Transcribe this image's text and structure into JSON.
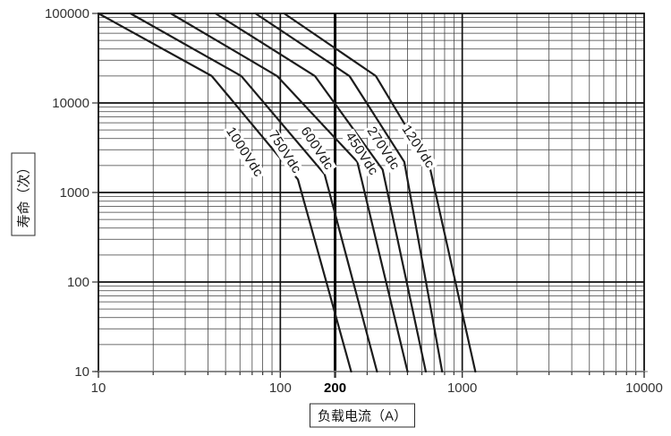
{
  "figure": {
    "background": "#ffffff",
    "curve_color": "#1c1c1c",
    "grid_minor_color": "#3c3c3c",
    "grid_major_color": "#111111",
    "axis_line_color": "#a3a3a3",
    "reference_line_color": "#000000",
    "tick_label_color": "#333333"
  },
  "chart_data": {
    "type": "line",
    "title": "",
    "xlabel": "负载电流（A）",
    "ylabel": "寿命（次）",
    "x_scale": "log",
    "y_scale": "log",
    "xlim": [
      10,
      10000
    ],
    "ylim": [
      10,
      100000
    ],
    "grid": "log major + minor gridlines on both axes",
    "legend_position": "inline rotated labels on curves",
    "reference_line_x": 200,
    "x_ticks": [
      {
        "value": 10,
        "label": "10",
        "bold": false
      },
      {
        "value": 100,
        "label": "100",
        "bold": false
      },
      {
        "value": 200,
        "label": "200",
        "bold": true
      },
      {
        "value": 1000,
        "label": "1000",
        "bold": false
      },
      {
        "value": 10000,
        "label": "10000",
        "bold": false
      }
    ],
    "y_ticks": [
      {
        "value": 10,
        "label": "10"
      },
      {
        "value": 100,
        "label": "100"
      },
      {
        "value": 1000,
        "label": "1000"
      },
      {
        "value": 10000,
        "label": "10000"
      },
      {
        "value": 100000,
        "label": "100000"
      }
    ],
    "series": [
      {
        "name": "1000Vdc",
        "points": [
          [
            10,
            100000
          ],
          [
            42,
            20000
          ],
          [
            125,
            1400
          ],
          [
            245,
            10
          ]
        ],
        "label_at": [
          63,
          2800
        ]
      },
      {
        "name": "750Vdc",
        "points": [
          [
            15,
            100000
          ],
          [
            61,
            20000
          ],
          [
            175,
            1600
          ],
          [
            340,
            10
          ]
        ],
        "label_at": [
          105,
          2800
        ]
      },
      {
        "name": "600Vdc",
        "points": [
          [
            25,
            100000
          ],
          [
            96,
            20000
          ],
          [
            265,
            2200
          ],
          [
            500,
            10
          ]
        ],
        "label_at": [
          158,
          3100
        ]
      },
      {
        "name": "450Vdc",
        "points": [
          [
            44,
            100000
          ],
          [
            155,
            20000
          ],
          [
            365,
            1800
          ],
          [
            630,
            10
          ]
        ],
        "label_at": [
          280,
          2700
        ]
      },
      {
        "name": "270Vdc",
        "points": [
          [
            73,
            100000
          ],
          [
            240,
            20000
          ],
          [
            480,
            2200
          ],
          [
            775,
            10
          ]
        ],
        "label_at": [
          365,
          3100
        ]
      },
      {
        "name": "120Vdc",
        "points": [
          [
            105,
            100000
          ],
          [
            335,
            20000
          ],
          [
            660,
            2000
          ],
          [
            1180,
            10
          ]
        ],
        "label_at": [
          570,
          3200
        ]
      }
    ]
  }
}
